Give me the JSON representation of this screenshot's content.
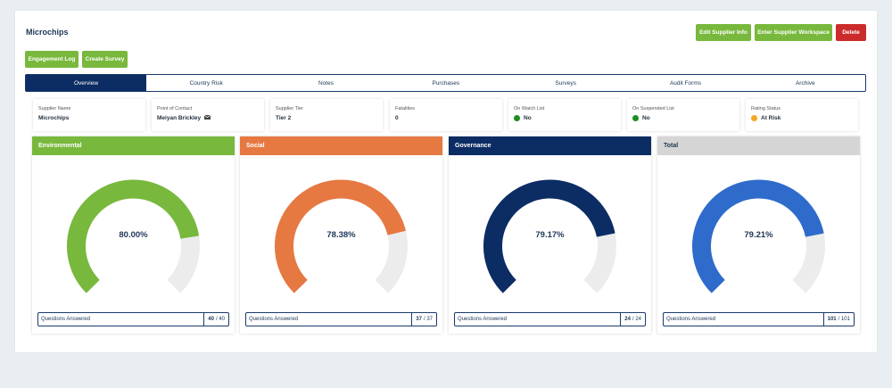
{
  "header": {
    "title": "Microchips",
    "edit_label": "Edit Supplier Info",
    "workspace_label": "Enter Supplier Workspace",
    "delete_label": "Delete",
    "engagement_label": "Engagement Log",
    "survey_label": "Create Survey"
  },
  "colors": {
    "green": "#78b83c",
    "red": "#cc2b2b",
    "navy": "#0c2c64",
    "orange": "#e67842",
    "blue": "#2f6bcb",
    "gray": "#cfcfcf"
  },
  "tabs": [
    {
      "label": "Overview",
      "active": true
    },
    {
      "label": "Country Risk"
    },
    {
      "label": "Notes"
    },
    {
      "label": "Purchases"
    },
    {
      "label": "Surveys"
    },
    {
      "label": "Audit Forms"
    },
    {
      "label": "Archive"
    }
  ],
  "info": [
    {
      "label": "Supplier Name",
      "value": "Microchips"
    },
    {
      "label": "Point of Contact",
      "value": "Meiyan Brickley",
      "icon": "envelope-icon"
    },
    {
      "label": "Supplier Tier",
      "value": "Tier 2"
    },
    {
      "label": "Fatalities",
      "value": "0"
    },
    {
      "label": "On Watch List",
      "value": "No",
      "status": "#1e8e1e"
    },
    {
      "label": "On Suspended List",
      "value": "No",
      "status": "#1e8e1e"
    },
    {
      "label": "Rating Status",
      "value": "At Risk",
      "status": "#f5a623"
    }
  ],
  "scores": [
    {
      "title": "Environmental",
      "percent": "80.00%",
      "fraction": 0.8,
      "header_color": "#78b83c",
      "arc_color": "#78b83c",
      "header_text": "#ffffff",
      "qa_label": "Questions Answered",
      "answered": "40",
      "total": "/ 40"
    },
    {
      "title": "Social",
      "percent": "78.38%",
      "fraction": 0.7838,
      "header_color": "#e67842",
      "arc_color": "#e67842",
      "header_text": "#ffffff",
      "qa_label": "Questions Answered",
      "answered": "37",
      "total": "/ 37"
    },
    {
      "title": "Governance",
      "percent": "79.17%",
      "fraction": 0.7917,
      "header_color": "#0c2c64",
      "arc_color": "#0c2c64",
      "header_text": "#ffffff",
      "qa_label": "Questions Answered",
      "answered": "24",
      "total": "/ 24"
    },
    {
      "title": "Total",
      "percent": "79.21%",
      "fraction": 0.7921,
      "header_color": "#d5d5d5",
      "arc_color": "#2f6bcb",
      "header_text": "#1d3557",
      "qa_label": "Questions Answered",
      "answered": "101",
      "total": "/ 101"
    }
  ]
}
